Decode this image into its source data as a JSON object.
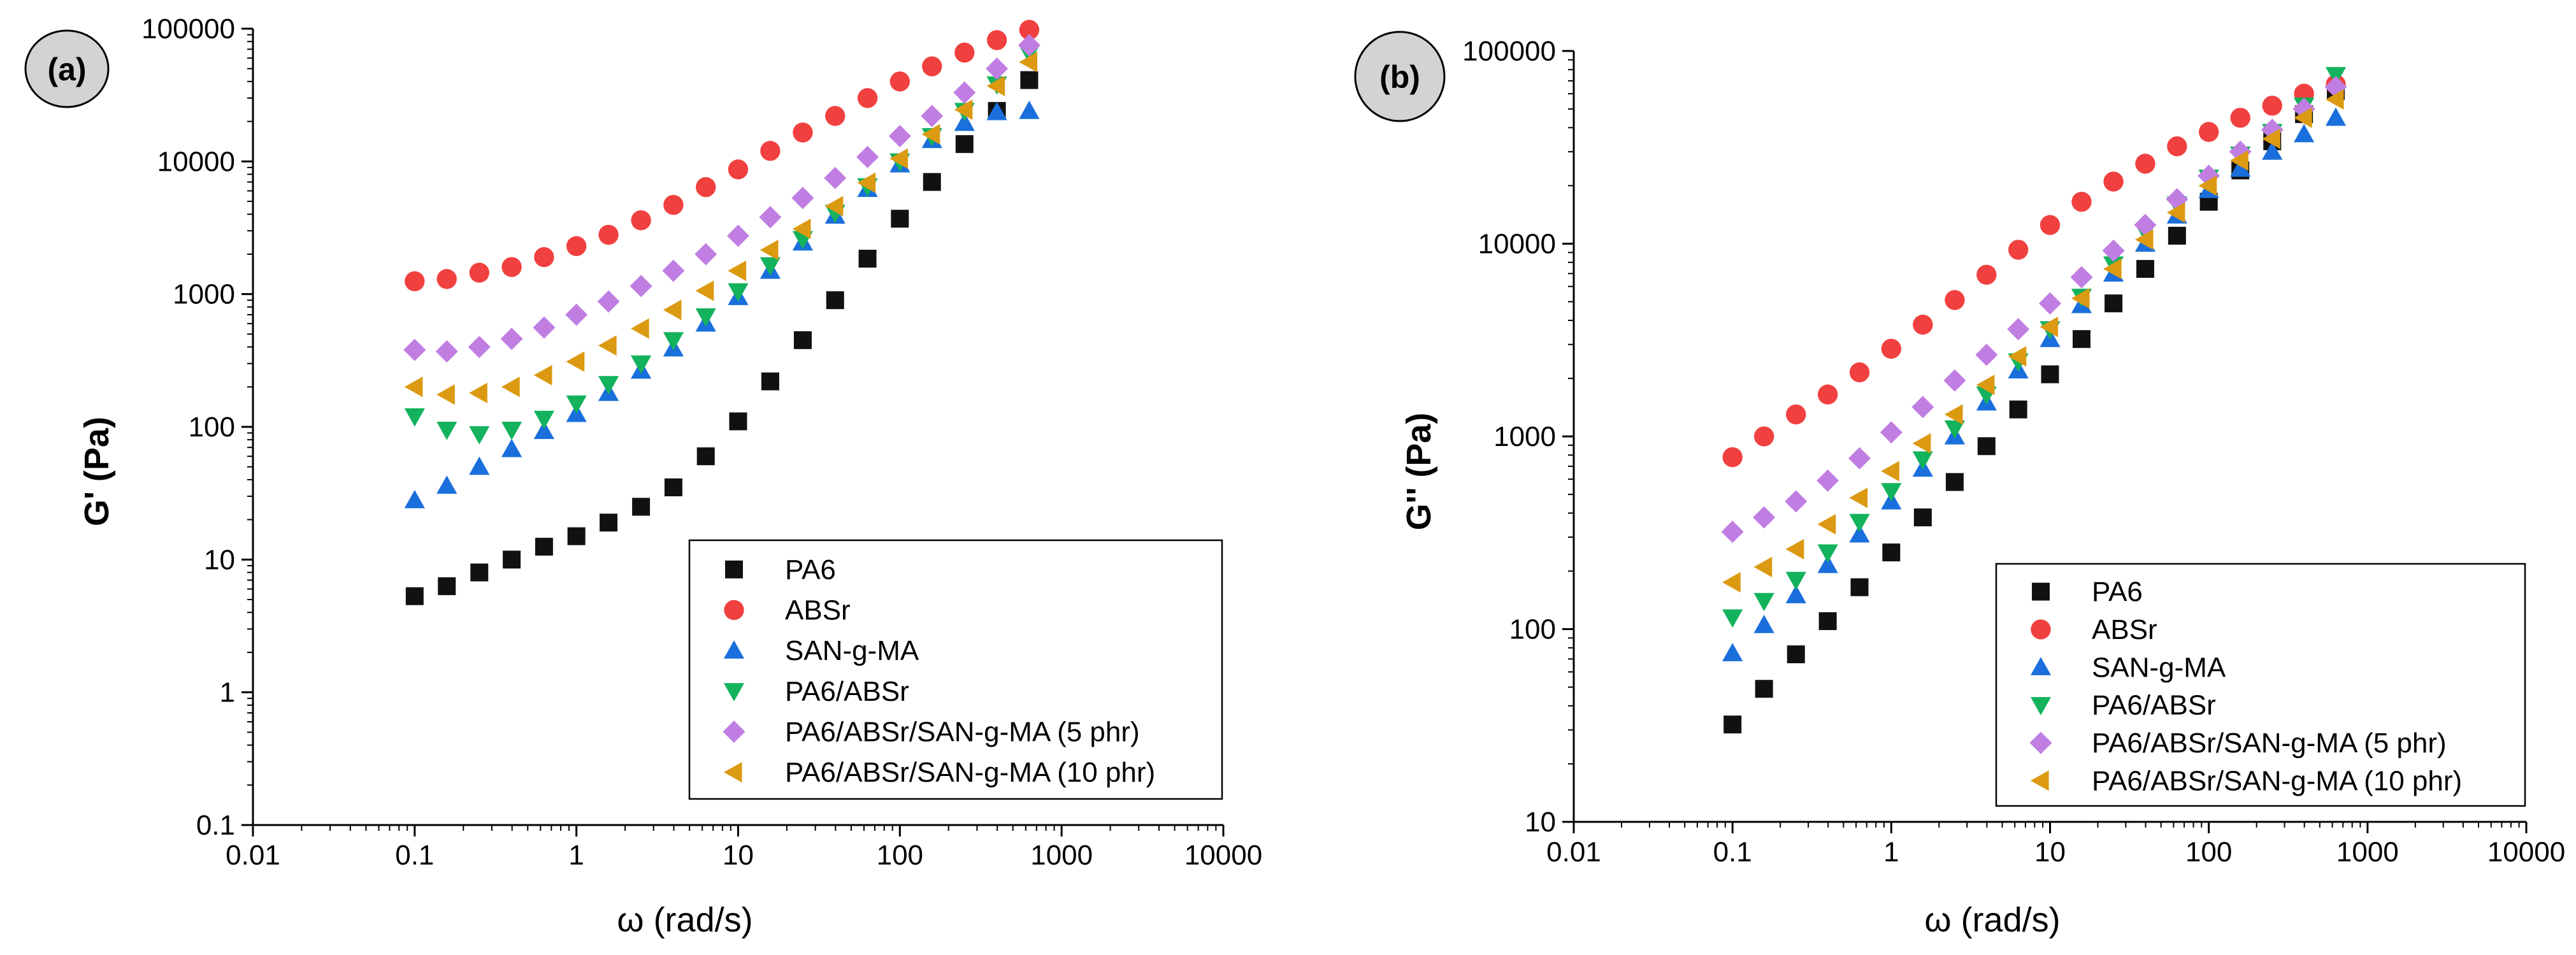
{
  "panels": [
    {
      "label": "(a)",
      "ylabel": "G' (Pa)",
      "xlabel": "ω (rad/s)"
    },
    {
      "label": "(b)",
      "ylabel": "G'' (Pa)",
      "xlabel": "ω (rad/s)"
    }
  ],
  "colors": {
    "PA6": "#111111",
    "ABSr": "#f0403f",
    "SAN-g-MA": "#1a6fdc",
    "PA6/ABSr": "#13b25c",
    "PA6/ABSr/SAN-g-MA (5 phr)": "#c07ee2",
    "PA6/ABSr/SAN-g-MA (10 phr)": "#dc9a12"
  },
  "chart_data": [
    {
      "type": "scatter",
      "title": "",
      "xlabel": "ω (rad/s)",
      "ylabel": "G' (Pa)",
      "xscale": "log",
      "yscale": "log",
      "xlim": [
        0.01,
        10000
      ],
      "ylim": [
        0.1,
        100000
      ],
      "xticks": [
        "0.01",
        "0.1",
        "1",
        "10",
        "100",
        "1000",
        "10000"
      ],
      "yticks": [
        "0.1",
        "1",
        "10",
        "100",
        "1000",
        "10000",
        "100000"
      ],
      "legend": "bottom-right",
      "series": [
        {
          "name": "PA6",
          "marker": "square",
          "x": [
            0.1,
            0.158,
            0.251,
            0.398,
            0.631,
            1,
            1.58,
            2.51,
            3.98,
            6.31,
            10,
            15.8,
            25.1,
            39.8,
            63.1,
            100,
            158,
            251,
            398,
            631
          ],
          "y": [
            5.3,
            6.3,
            8,
            10,
            12.5,
            15,
            19,
            25,
            35,
            60,
            110,
            220,
            450,
            900,
            1850,
            3700,
            7000,
            13500,
            24000,
            41000
          ]
        },
        {
          "name": "ABSr",
          "marker": "circle",
          "x": [
            0.1,
            0.158,
            0.251,
            0.398,
            0.631,
            1,
            1.58,
            2.51,
            3.98,
            6.31,
            10,
            15.8,
            25.1,
            39.8,
            63.1,
            100,
            158,
            251,
            398,
            631
          ],
          "y": [
            1250,
            1300,
            1450,
            1600,
            1900,
            2300,
            2800,
            3600,
            4700,
            6400,
            8700,
            12000,
            16500,
            22000,
            30000,
            40000,
            52000,
            66000,
            82000,
            98000
          ]
        },
        {
          "name": "SAN-g-MA",
          "marker": "triangle-up",
          "x": [
            0.1,
            0.158,
            0.251,
            0.398,
            0.631,
            1,
            1.58,
            2.51,
            3.98,
            6.31,
            10,
            15.8,
            25.1,
            39.8,
            63.1,
            100,
            158,
            251,
            398,
            631
          ],
          "y": [
            28,
            36,
            50,
            68,
            93,
            125,
            180,
            265,
            390,
            600,
            950,
            1500,
            2450,
            3900,
            6200,
            9500,
            14500,
            19500,
            23500,
            24000
          ]
        },
        {
          "name": "PA6/ABSr",
          "marker": "triangle-down",
          "x": [
            0.1,
            0.158,
            0.251,
            0.398,
            0.631,
            1,
            1.58,
            2.51,
            3.98,
            6.31,
            10,
            15.8,
            25.1,
            39.8,
            63.1,
            100,
            158,
            251,
            398,
            631
          ],
          "y": [
            120,
            95,
            88,
            95,
            115,
            150,
            210,
            300,
            450,
            680,
            1050,
            1650,
            2600,
            4100,
            6500,
            10000,
            15500,
            24000,
            38000,
            65000
          ]
        },
        {
          "name": "PA6/ABSr/SAN-g-MA (5 phr)",
          "marker": "diamond",
          "x": [
            0.1,
            0.158,
            0.251,
            0.398,
            0.631,
            1,
            1.58,
            2.51,
            3.98,
            6.31,
            10,
            15.8,
            25.1,
            39.8,
            63.1,
            100,
            158,
            251,
            398,
            631
          ],
          "y": [
            380,
            370,
            400,
            460,
            560,
            700,
            880,
            1150,
            1500,
            2000,
            2750,
            3800,
            5300,
            7500,
            10800,
            15500,
            22000,
            33000,
            50000,
            75000
          ]
        },
        {
          "name": "PA6/ABSr/SAN-g-MA (10 phr)",
          "marker": "triangle-left",
          "x": [
            0.1,
            0.158,
            0.251,
            0.398,
            0.631,
            1,
            1.58,
            2.51,
            3.98,
            6.31,
            10,
            15.8,
            25.1,
            39.8,
            63.1,
            100,
            158,
            251,
            398,
            631
          ],
          "y": [
            200,
            175,
            180,
            200,
            245,
            310,
            410,
            550,
            760,
            1060,
            1500,
            2150,
            3100,
            4600,
            6900,
            10500,
            16000,
            24500,
            37000,
            56000
          ]
        }
      ]
    },
    {
      "type": "scatter",
      "title": "",
      "xlabel": "ω (rad/s)",
      "ylabel": "G'' (Pa)",
      "xscale": "log",
      "yscale": "log",
      "xlim": [
        0.01,
        10000
      ],
      "ylim": [
        10,
        100000
      ],
      "xticks": [
        "0.01",
        "0.1",
        "1",
        "10",
        "100",
        "1000",
        "10000"
      ],
      "yticks": [
        "10",
        "100",
        "1000",
        "10000",
        "100000"
      ],
      "legend": "bottom-right",
      "series": [
        {
          "name": "PA6",
          "marker": "square",
          "x": [
            0.1,
            0.158,
            0.251,
            0.398,
            0.631,
            1,
            1.58,
            2.51,
            3.98,
            6.31,
            10,
            15.8,
            25.1,
            39.8,
            63.1,
            100,
            158,
            251,
            398,
            631
          ],
          "y": [
            32,
            49,
            74,
            110,
            165,
            250,
            380,
            580,
            890,
            1380,
            2100,
            3200,
            4900,
            7400,
            11000,
            16500,
            24000,
            34000,
            47000,
            62000
          ]
        },
        {
          "name": "ABSr",
          "marker": "circle",
          "x": [
            0.1,
            0.158,
            0.251,
            0.398,
            0.631,
            1,
            1.58,
            2.51,
            3.98,
            6.31,
            10,
            15.8,
            25.1,
            39.8,
            63.1,
            100,
            158,
            251,
            398,
            631
          ],
          "y": [
            780,
            1000,
            1300,
            1650,
            2150,
            2850,
            3800,
            5100,
            6900,
            9300,
            12500,
            16500,
            21000,
            26000,
            32000,
            38000,
            45000,
            52000,
            60000,
            67000
          ]
        },
        {
          "name": "SAN-g-MA",
          "marker": "triangle-up",
          "x": [
            0.1,
            0.158,
            0.251,
            0.398,
            0.631,
            1,
            1.58,
            2.51,
            3.98,
            6.31,
            10,
            15.8,
            25.1,
            39.8,
            63.1,
            100,
            158,
            251,
            398,
            631
          ],
          "y": [
            75,
            105,
            150,
            215,
            310,
            460,
            680,
            1000,
            1500,
            2200,
            3200,
            4800,
            7000,
            10000,
            14000,
            19000,
            24500,
            30000,
            37000,
            45000
          ]
        },
        {
          "name": "PA6/ABSr",
          "marker": "triangle-down",
          "x": [
            0.1,
            0.158,
            0.251,
            0.398,
            0.631,
            1,
            1.58,
            2.51,
            3.98,
            6.31,
            10,
            15.8,
            25.1,
            39.8,
            63.1,
            100,
            158,
            251,
            398,
            631
          ],
          "y": [
            115,
            140,
            180,
            250,
            360,
            520,
            760,
            1100,
            1650,
            2450,
            3600,
            5300,
            7800,
            11500,
            16000,
            22000,
            29000,
            38000,
            52000,
            75000
          ]
        },
        {
          "name": "PA6/ABSr/SAN-g-MA (5 phr)",
          "marker": "diamond",
          "x": [
            0.1,
            0.158,
            0.251,
            0.398,
            0.631,
            1,
            1.58,
            2.51,
            3.98,
            6.31,
            10,
            15.8,
            25.1,
            39.8,
            63.1,
            100,
            158,
            251,
            398,
            631
          ],
          "y": [
            320,
            380,
            460,
            590,
            770,
            1050,
            1420,
            1950,
            2650,
            3600,
            4900,
            6700,
            9200,
            12500,
            17000,
            22500,
            30000,
            39000,
            50000,
            65000
          ]
        },
        {
          "name": "PA6/ABSr/SAN-g-MA (10 phr)",
          "marker": "triangle-left",
          "x": [
            0.1,
            0.158,
            0.251,
            0.398,
            0.631,
            1,
            1.58,
            2.51,
            3.98,
            6.31,
            10,
            15.8,
            25.1,
            39.8,
            63.1,
            100,
            158,
            251,
            398,
            631
          ],
          "y": [
            175,
            210,
            260,
            350,
            480,
            660,
            920,
            1300,
            1850,
            2600,
            3700,
            5200,
            7400,
            10500,
            14500,
            20000,
            27000,
            35000,
            45000,
            56000
          ]
        }
      ]
    }
  ]
}
